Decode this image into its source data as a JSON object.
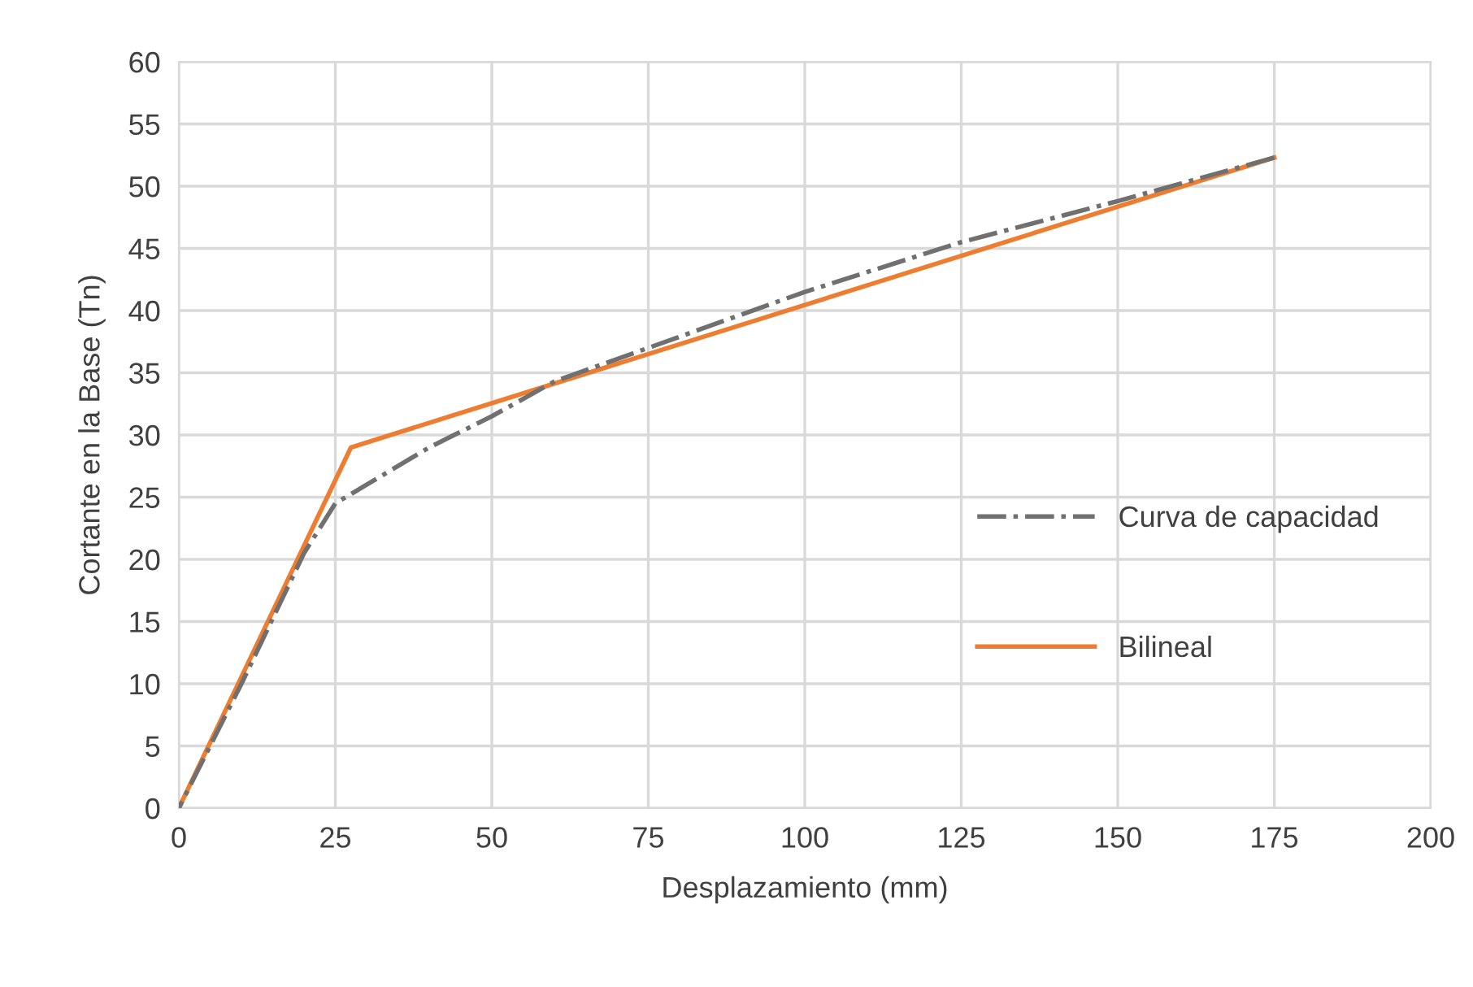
{
  "chart_data": {
    "type": "line",
    "xlabel": "Desplazamiento (mm)",
    "ylabel": "Cortante en la Base (Tn)",
    "xlim": [
      0,
      200
    ],
    "xticks": [
      0,
      25,
      50,
      75,
      100,
      125,
      150,
      175,
      200
    ],
    "ylim": [
      0,
      60
    ],
    "yticks": [
      0,
      5,
      10,
      15,
      20,
      25,
      30,
      35,
      40,
      45,
      50,
      55,
      60
    ],
    "grid": true,
    "legend": "right",
    "marker": "none",
    "series": [
      {
        "name": "Curva de capacidad",
        "color": "#707070",
        "line_style": "dashdot",
        "x": [
          0,
          10,
          20,
          25,
          30,
          40,
          50,
          60,
          75,
          100,
          125,
          150,
          175
        ],
        "values": [
          0,
          10,
          20.5,
          24.5,
          26,
          29,
          31.5,
          34.3,
          37,
          41.5,
          45.5,
          48.8,
          52.3
        ]
      },
      {
        "name": "Bilineal",
        "color": "#ed7d31",
        "line_style": "solid",
        "x": [
          0,
          27.5,
          175
        ],
        "values": [
          0,
          29,
          52.3
        ]
      }
    ]
  }
}
